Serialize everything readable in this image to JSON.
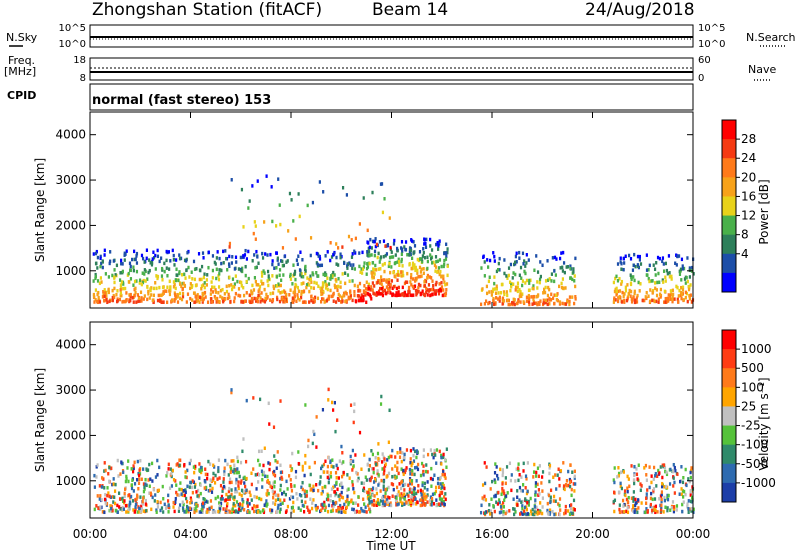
{
  "header": {
    "station": "Zhongshan Station (fitACF)",
    "beam": "Beam 14",
    "date": "24/Aug/2018"
  },
  "param_panels": {
    "nsky_label": "N.Sky",
    "nsky_ticks": [
      "10^5",
      "10^0"
    ],
    "nsearch_label": "N.Search",
    "nsearch_ticks": [
      "10^5",
      "10^0"
    ],
    "freq_label": "Freq.",
    "freq_unit": "[MHz]",
    "freq_ticks": [
      "18",
      "8"
    ],
    "nave_label": "Nave",
    "nave_ticks": [
      "60",
      "0"
    ],
    "cpid_label": "CPID",
    "cpid_text": "normal (fast stereo) 153"
  },
  "chart_data": [
    {
      "type": "heatmap",
      "name": "power",
      "ylabel": "Slant Range [km]",
      "xlabel": "",
      "ylim": [
        180,
        4500
      ],
      "yticks": [
        "4000",
        "3000",
        "2000",
        "1000"
      ],
      "ytick_values": [
        4000,
        3000,
        2000,
        1000
      ],
      "colorbar_label": "Power [dB]",
      "colorbar_ticks": [
        "28",
        "24",
        "20",
        "16",
        "12",
        "8",
        "4"
      ],
      "colorbar_colors": [
        "#0000ff",
        "#1c4ea8",
        "#2d7f5a",
        "#49b04a",
        "#e8d21a",
        "#f7a21a",
        "#ff7a1a",
        "#f53a12",
        "#ff0000"
      ]
    },
    {
      "type": "heatmap",
      "name": "velocity",
      "ylabel": "Slant Range [km]",
      "xlabel": "Time UT",
      "ylim": [
        180,
        4500
      ],
      "yticks": [
        "4000",
        "3000",
        "2000",
        "1000"
      ],
      "ytick_values": [
        4000,
        3000,
        2000,
        1000
      ],
      "xticks": [
        "00:00",
        "04:00",
        "08:00",
        "12:00",
        "16:00",
        "20:00",
        "00:00"
      ],
      "xtick_values_hours": [
        0,
        4,
        8,
        12,
        16,
        20,
        24
      ],
      "colorbar_label": "Velocity [m s⁻¹]",
      "colorbar_ticks": [
        "1000",
        "500",
        "100",
        "25",
        "-25",
        "-100",
        "-500",
        "-1000"
      ],
      "colorbar_colors": [
        "#1c3ea8",
        "#2e6bb0",
        "#2f8a6a",
        "#55c23a",
        "#c0c0c0",
        "#ffa500",
        "#ff7a1a",
        "#ff3c14",
        "#ff0000"
      ]
    }
  ]
}
